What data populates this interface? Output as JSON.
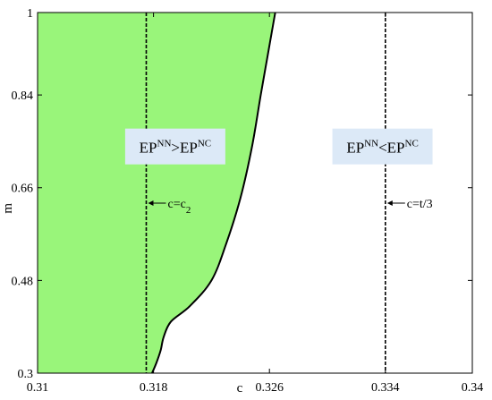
{
  "chart_data": {
    "type": "area",
    "xlabel": "c",
    "ylabel": "m",
    "xlim": [
      0.31,
      0.34
    ],
    "ylim": [
      0.3,
      1.0
    ],
    "x_ticks": [
      0.31,
      0.318,
      0.326,
      0.334,
      0.34
    ],
    "x_tick_labels": [
      "0.31",
      "0.318",
      "0.326",
      "0.334",
      "0.34"
    ],
    "y_ticks": [
      0.3,
      0.48,
      0.66,
      0.84,
      1.0
    ],
    "y_tick_labels": [
      "0.3",
      "0.48",
      "0.66",
      "0.84",
      "1"
    ],
    "grid": false,
    "boundary_curve": {
      "x": [
        0.3179,
        0.3182,
        0.3185,
        0.3187,
        0.3192,
        0.3205,
        0.322,
        0.323,
        0.324,
        0.3248,
        0.3254,
        0.3259,
        0.3264
      ],
      "y": [
        0.3,
        0.32,
        0.345,
        0.37,
        0.4,
        0.43,
        0.48,
        0.55,
        0.64,
        0.74,
        0.84,
        0.92,
        1.0
      ]
    },
    "fill_color": "#99f57a",
    "vlines": [
      {
        "x": 0.3175,
        "label_main": "c=c",
        "label_sub": "2",
        "label_y": 0.63
      },
      {
        "x": 0.334,
        "label_main": "c=t/3",
        "label_sub": "",
        "label_y": 0.63
      }
    ],
    "region_labels": [
      {
        "x": 0.3195,
        "y": 0.74,
        "parts": [
          "EP",
          "NN",
          ">EP",
          "NC"
        ]
      },
      {
        "x": 0.3338,
        "y": 0.74,
        "parts": [
          "EP",
          "NN",
          "<EP",
          "NC"
        ]
      }
    ],
    "label_box_color": "#dce9f7"
  }
}
